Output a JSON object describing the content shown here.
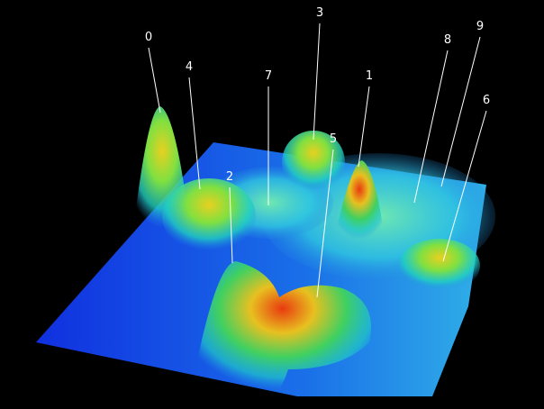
{
  "peak_labels": [
    "0",
    "1",
    "2",
    "3",
    "4",
    "5",
    "6",
    "7",
    "8",
    "9"
  ]
}
